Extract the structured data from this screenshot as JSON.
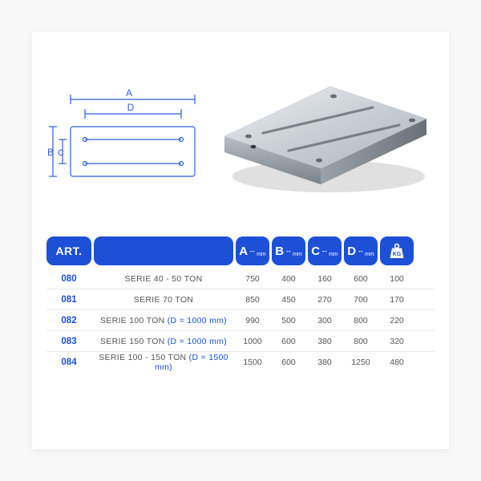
{
  "colors": {
    "brand": "#1d4fd7",
    "diagram_stroke": "#2a5fe0",
    "row_border": "#e8e8e8",
    "text": "#555555",
    "card_bg": "#ffffff",
    "page_bg": "#f8f8f8",
    "plate_top": "#d8dde2",
    "plate_top_dark": "#b5bcc4",
    "plate_side": "#8f969e",
    "plate_side_dark": "#6b7179"
  },
  "diagram": {
    "labels": {
      "A": "A",
      "B": "B",
      "C": "C",
      "D": "D"
    }
  },
  "table": {
    "headers": {
      "art": "ART.",
      "A": "A",
      "B": "B",
      "C": "C",
      "D": "D",
      "unit": "mm",
      "kg_label": "KG"
    },
    "rows": [
      {
        "art": "080",
        "desc": "SERIE 40 - 50 TON",
        "paren": "",
        "A": "750",
        "B": "400",
        "C": "160",
        "D": "600",
        "KG": "100"
      },
      {
        "art": "081",
        "desc": "SERIE 70 TON",
        "paren": "",
        "A": "850",
        "B": "450",
        "C": "270",
        "D": "700",
        "KG": "170"
      },
      {
        "art": "082",
        "desc": "SERIE 100 TON ",
        "paren": "(D = 1000 mm)",
        "A": "990",
        "B": "500",
        "C": "300",
        "D": "800",
        "KG": "220"
      },
      {
        "art": "083",
        "desc": "SERIE 150 TON ",
        "paren": "(D = 1000 mm)",
        "A": "1000",
        "B": "600",
        "C": "380",
        "D": "800",
        "KG": "320"
      },
      {
        "art": "084",
        "desc": "SERIE 100 - 150 TON ",
        "paren": "(D = 1500 mm)",
        "A": "1500",
        "B": "600",
        "C": "380",
        "D": "1250",
        "KG": "480"
      }
    ]
  }
}
